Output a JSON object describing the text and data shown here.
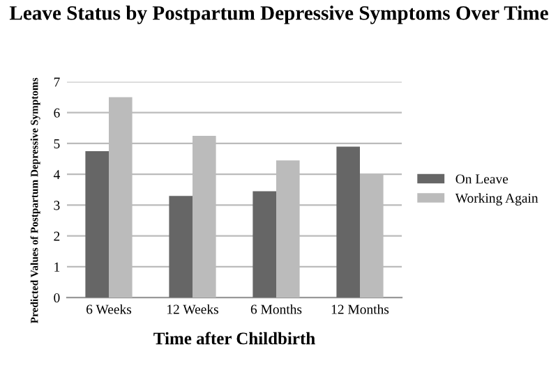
{
  "chart_data": {
    "type": "bar",
    "title": "Leave Status by Postpartum Depressive Symptoms Over Time",
    "xlabel": "Time after Childbirth",
    "ylabel": "Predicted Values of Postpartum Depressive Symptoms",
    "categories": [
      "6 Weeks",
      "12 Weeks",
      "6 Months",
      "12 Months"
    ],
    "series": [
      {
        "name": "On Leave",
        "color": "#666666",
        "values": [
          4.75,
          3.3,
          3.45,
          4.9
        ]
      },
      {
        "name": "Working Again",
        "color": "#bbbbbb",
        "values": [
          6.5,
          5.25,
          4.45,
          4.0
        ]
      }
    ],
    "ylim": [
      0,
      7
    ],
    "yticks": [
      0,
      1,
      2,
      3,
      4,
      5,
      6,
      7
    ],
    "grid": "y",
    "legend": "right"
  }
}
